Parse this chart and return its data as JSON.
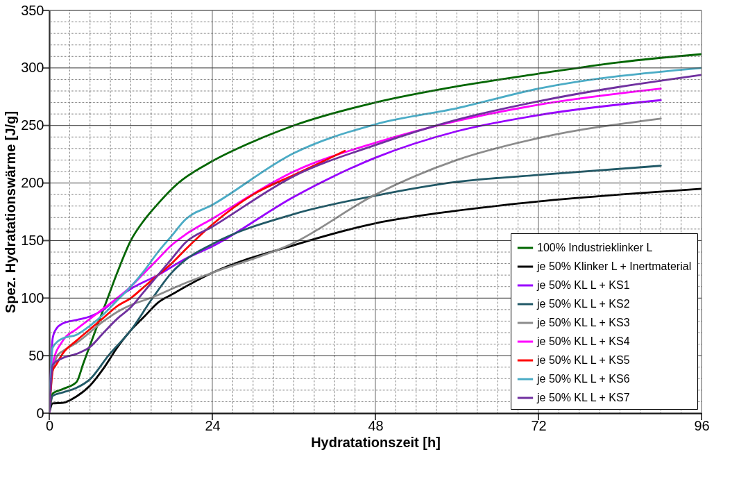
{
  "chart_data": {
    "type": "line",
    "xlabel": "Hydratationszeit [h]",
    "ylabel": "Spez. Hydratationswärme [J/g]",
    "xlim": [
      0,
      96
    ],
    "ylim": [
      0,
      350
    ],
    "xticks": [
      0,
      {
        "value": 3,
        "label": null
      },
      {
        "value": 6,
        "label": null
      },
      {
        "value": 9,
        "label": null
      },
      {
        "value": 12,
        "label": null
      },
      {
        "value": 15,
        "label": null
      },
      {
        "value": 18,
        "label": null
      },
      {
        "value": 21,
        "label": null
      },
      24,
      {
        "value": 27,
        "label": null
      },
      {
        "value": 30,
        "label": null
      },
      {
        "value": 33,
        "label": null
      },
      {
        "value": 36,
        "label": null
      },
      {
        "value": 39,
        "label": null
      },
      {
        "value": 42,
        "label": null
      },
      {
        "value": 45,
        "label": null
      },
      48,
      {
        "value": 51,
        "label": null
      },
      {
        "value": 54,
        "label": null
      },
      {
        "value": 57,
        "label": null
      },
      {
        "value": 60,
        "label": null
      },
      {
        "value": 63,
        "label": null
      },
      {
        "value": 66,
        "label": null
      },
      {
        "value": 69,
        "label": null
      },
      72,
      {
        "value": 75,
        "label": null
      },
      {
        "value": 78,
        "label": null
      },
      {
        "value": 81,
        "label": null
      },
      {
        "value": 84,
        "label": null
      },
      {
        "value": 87,
        "label": null
      },
      {
        "value": 90,
        "label": null
      },
      {
        "value": 93,
        "label": null
      },
      96
    ],
    "yticks": [
      0,
      {
        "value": 10,
        "label": null
      },
      {
        "value": 20,
        "label": null
      },
      {
        "value": 30,
        "label": null
      },
      {
        "value": 40,
        "label": null
      },
      50,
      {
        "value": 60,
        "label": null
      },
      {
        "value": 70,
        "label": null
      },
      {
        "value": 80,
        "label": null
      },
      {
        "value": 90,
        "label": null
      },
      100,
      {
        "value": 110,
        "label": null
      },
      {
        "value": 120,
        "label": null
      },
      {
        "value": 130,
        "label": null
      },
      {
        "value": 140,
        "label": null
      },
      150,
      {
        "value": 160,
        "label": null
      },
      {
        "value": 170,
        "label": null
      },
      {
        "value": 180,
        "label": null
      },
      {
        "value": 190,
        "label": null
      },
      200,
      {
        "value": 210,
        "label": null
      },
      {
        "value": 220,
        "label": null
      },
      {
        "value": 230,
        "label": null
      },
      {
        "value": 240,
        "label": null
      },
      250,
      {
        "value": 260,
        "label": null
      },
      {
        "value": 270,
        "label": null
      },
      {
        "value": 280,
        "label": null
      },
      {
        "value": 290,
        "label": null
      },
      300,
      {
        "value": 310,
        "label": null
      },
      {
        "value": 320,
        "label": null
      },
      {
        "value": 330,
        "label": null
      },
      {
        "value": 340,
        "label": null
      },
      350
    ],
    "grid": true,
    "legend": "bottom right",
    "marker": "none",
    "line_style": "solid",
    "series": [
      {
        "name": "100% Industrieklinker L",
        "color": "#006600",
        "x": [
          0,
          0.5,
          2,
          4,
          5,
          7,
          8.6,
          10,
          12,
          14,
          16,
          19,
          24,
          30,
          36,
          48,
          60,
          72,
          84,
          96
        ],
        "values": [
          0,
          17,
          21,
          27,
          43,
          75,
          100,
          122,
          150,
          168,
          182,
          200,
          219,
          236,
          250,
          270,
          284,
          295,
          305,
          312
        ]
      },
      {
        "name": "je 50% Klinker L + Inertmaterial",
        "color": "#000000",
        "x": [
          0,
          0.5,
          2,
          4,
          6,
          8,
          10,
          12,
          14,
          16,
          18,
          24,
          36,
          48,
          60,
          72,
          84,
          96
        ],
        "values": [
          0,
          8.5,
          9,
          14.5,
          24,
          39,
          57,
          72,
          84,
          96,
          103,
          122,
          146,
          165,
          176,
          184,
          190,
          195
        ]
      },
      {
        "name": "je 50% KL L + KS1",
        "color": "#9900ff",
        "x": [
          0,
          0.5,
          1,
          2,
          4,
          6,
          8,
          10,
          12,
          16,
          20,
          24,
          36,
          48,
          60,
          72,
          90
        ],
        "values": [
          0,
          65,
          73,
          78,
          81,
          84,
          90,
          100,
          108,
          120,
          134,
          145,
          188,
          222,
          245,
          259,
          272
        ]
      },
      {
        "name": "je 50% KL L + KS2",
        "color": "#215967",
        "x": [
          0,
          0.5,
          2,
          4,
          6,
          8.7,
          12,
          15.2,
          18,
          20,
          24,
          36,
          48,
          60,
          72,
          90
        ],
        "values": [
          0,
          15,
          18,
          22,
          29.5,
          50,
          72,
          100,
          122,
          133,
          147,
          173,
          189,
          201,
          207,
          215
        ]
      },
      {
        "name": "je 50% KL L + KS3",
        "color": "#8c8c8c",
        "x": [
          0,
          0.5,
          1.2,
          2,
          4,
          8,
          10,
          12,
          14.9,
          20,
          24,
          36,
          48,
          60,
          72,
          90
        ],
        "values": [
          0,
          37,
          50,
          54,
          61,
          80,
          88,
          94,
          100,
          113,
          122,
          148,
          190,
          220,
          239,
          256
        ]
      },
      {
        "name": "je 50% KL L + KS4",
        "color": "#ff00ff",
        "x": [
          0,
          0.5,
          2,
          4,
          6,
          8,
          10,
          12,
          14,
          16,
          18,
          20,
          24,
          36,
          48,
          60,
          72,
          90
        ],
        "values": [
          0,
          43,
          63,
          73,
          82,
          91,
          100,
          110,
          122,
          134,
          146,
          155,
          169,
          210,
          235,
          254,
          268,
          282
        ]
      },
      {
        "name": "je 50% KL L + KS5",
        "color": "#ff0000",
        "x": [
          0,
          0.5,
          1,
          2,
          4,
          6,
          8,
          10,
          12,
          14,
          16,
          18,
          20,
          24,
          30,
          36,
          40,
          43.5
        ],
        "values": [
          0,
          37,
          42,
          52,
          63,
          73,
          83,
          93,
          100,
          110,
          120,
          130,
          142,
          164,
          190,
          207,
          218,
          228
        ]
      },
      {
        "name": "je 50% KL L + KS6",
        "color": "#4bacc6",
        "x": [
          0,
          0.5,
          2,
          4,
          6,
          8,
          10,
          12,
          14,
          16,
          18,
          20,
          24,
          36,
          48,
          60,
          72,
          96
        ],
        "values": [
          0,
          57,
          65,
          68,
          76,
          86,
          98,
          110,
          124,
          140,
          154,
          168,
          181,
          226,
          251,
          265,
          282,
          300
        ]
      },
      {
        "name": "je 50% KL L + KS7",
        "color": "#7030a0",
        "x": [
          0,
          0.5,
          2,
          4,
          6,
          8,
          10,
          12,
          14,
          16,
          18,
          20,
          24,
          36,
          48,
          60,
          72,
          96
        ],
        "values": [
          0,
          42,
          48,
          51.5,
          57.5,
          70,
          82,
          92,
          106,
          120,
          134,
          148,
          162,
          206,
          233,
          255,
          271,
          294
        ]
      }
    ]
  }
}
